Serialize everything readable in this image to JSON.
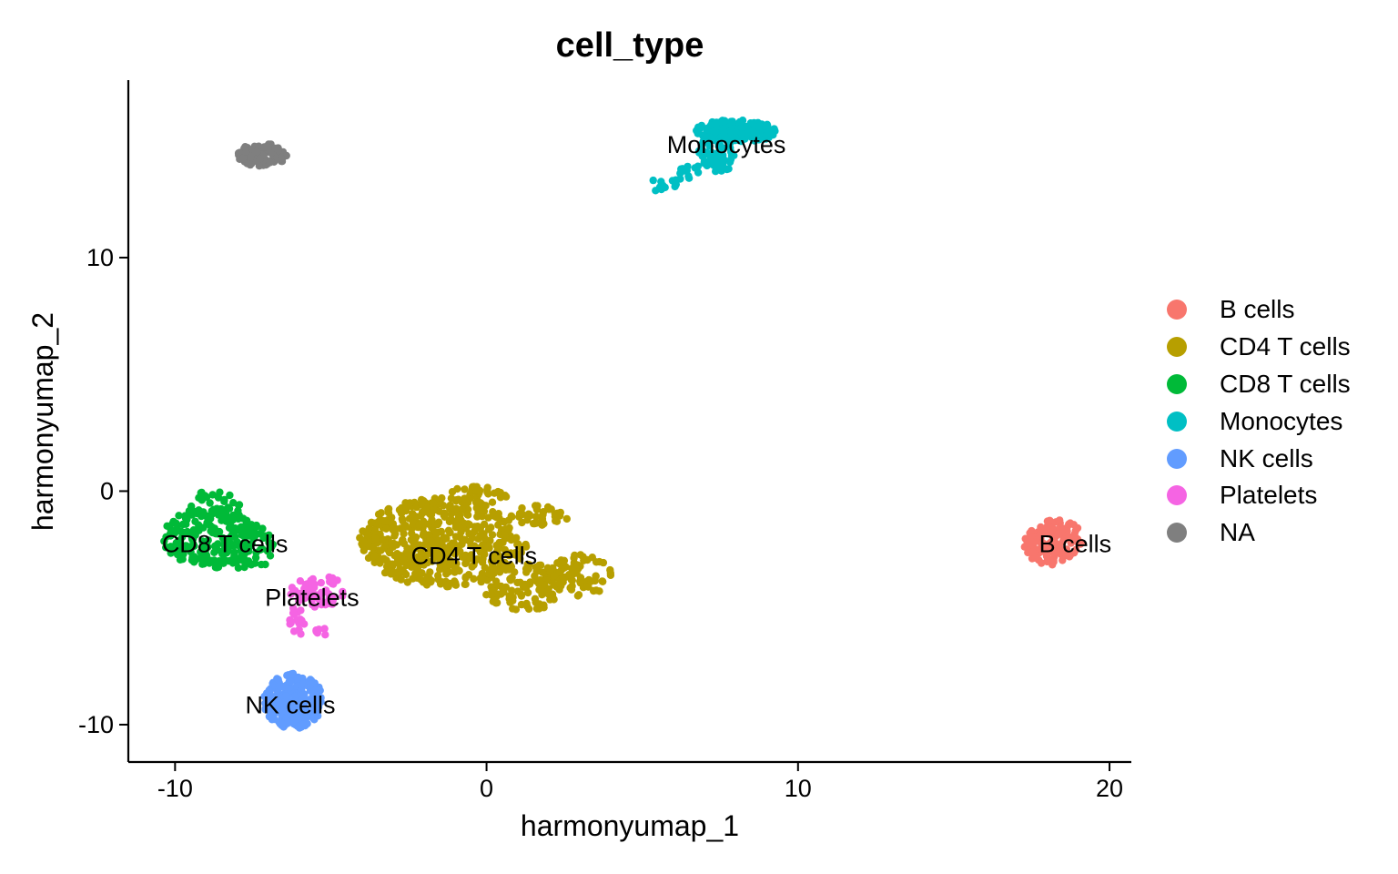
{
  "chart_data": {
    "type": "scatter",
    "title": "cell_type",
    "xlabel": "harmonyumap_1",
    "ylabel": "harmonyumap_2",
    "xlim": [
      -11.5,
      20.7
    ],
    "ylim": [
      -11.6,
      17.6
    ],
    "xticks": [
      -10,
      0,
      10,
      20
    ],
    "xtick_labels": [
      "-10",
      "0",
      "10",
      "20"
    ],
    "yticks": [
      -10,
      0,
      10
    ],
    "ytick_labels": [
      "-10",
      "0",
      "10"
    ],
    "grid": false,
    "legend_position": "right",
    "series": [
      {
        "name": "B cells",
        "color": "#F8766D",
        "label": "B cells",
        "label_pos": [
          18.9,
          -2.3
        ],
        "regions": [
          {
            "cx": 18.2,
            "cy": -2.2,
            "rx": 0.9,
            "ry": 1.05,
            "n": 140,
            "tilt": -0.7
          }
        ],
        "centroid": [
          18.2,
          -2.2
        ]
      },
      {
        "name": "CD4 T cells",
        "color": "#B79F00",
        "label": "CD4 T cells",
        "label_pos": [
          -0.4,
          -2.8
        ],
        "regions": [
          {
            "cx": -1.4,
            "cy": -2.2,
            "rx": 2.7,
            "ry": 1.9,
            "n": 520
          },
          {
            "cx": 1.3,
            "cy": -4.1,
            "rx": 1.4,
            "ry": 1.0,
            "n": 110
          },
          {
            "cx": 3.0,
            "cy": -3.6,
            "rx": 1.0,
            "ry": 0.9,
            "n": 70
          },
          {
            "cx": 1.6,
            "cy": -1.1,
            "rx": 1.0,
            "ry": 0.5,
            "n": 40
          },
          {
            "cx": -0.4,
            "cy": -0.3,
            "rx": 1.1,
            "ry": 0.5,
            "n": 40
          }
        ],
        "centroid": [
          -0.5,
          -2.5
        ]
      },
      {
        "name": "CD8 T cells",
        "color": "#00BA38",
        "label": "CD8 T cells",
        "label_pos": [
          -8.4,
          -2.3
        ],
        "regions": [
          {
            "cx": -8.9,
            "cy": -2.0,
            "rx": 1.5,
            "ry": 1.3,
            "n": 200
          },
          {
            "cx": -7.6,
            "cy": -2.4,
            "rx": 0.8,
            "ry": 1.0,
            "n": 60
          },
          {
            "cx": -8.8,
            "cy": -0.6,
            "rx": 0.9,
            "ry": 0.6,
            "n": 40
          }
        ],
        "centroid": [
          -8.6,
          -2.0
        ]
      },
      {
        "name": "Monocytes",
        "color": "#00BFC4",
        "label": "Monocytes",
        "label_pos": [
          7.7,
          14.8
        ],
        "regions": [
          {
            "cx": 8.0,
            "cy": 15.4,
            "rx": 1.3,
            "ry": 0.5,
            "n": 150
          },
          {
            "cx": 7.4,
            "cy": 14.5,
            "rx": 0.6,
            "ry": 0.9,
            "n": 70
          },
          {
            "cx": 6.0,
            "cy": 13.4,
            "rx": 1.0,
            "ry": 0.35,
            "n": 25,
            "tilt": 0.5
          }
        ],
        "centroid": [
          7.7,
          14.8
        ]
      },
      {
        "name": "NK cells",
        "color": "#619CFF",
        "label": "NK cells",
        "label_pos": [
          -6.3,
          -9.2
        ],
        "regions": [
          {
            "cx": -6.2,
            "cy": -9.0,
            "rx": 0.95,
            "ry": 1.2,
            "n": 260
          }
        ],
        "centroid": [
          -6.2,
          -9.0
        ]
      },
      {
        "name": "Platelets",
        "color": "#F564E3",
        "label": "Platelets",
        "label_pos": [
          -5.6,
          -4.6
        ],
        "regions": [
          {
            "cx": -5.4,
            "cy": -4.3,
            "rx": 0.9,
            "ry": 0.7,
            "n": 50
          },
          {
            "cx": -6.1,
            "cy": -5.7,
            "rx": 0.25,
            "ry": 0.8,
            "n": 18
          },
          {
            "cx": -5.3,
            "cy": -6.1,
            "rx": 0.2,
            "ry": 0.3,
            "n": 6
          }
        ],
        "centroid": [
          -5.5,
          -4.5
        ]
      },
      {
        "name": "NA",
        "color": "#7F7F7F",
        "label": "",
        "label_pos": null,
        "regions": [
          {
            "cx": -7.2,
            "cy": 14.4,
            "rx": 0.8,
            "ry": 0.5,
            "n": 90
          }
        ],
        "centroid": [
          -7.2,
          14.4
        ]
      }
    ]
  },
  "legend": [
    {
      "label": "B cells",
      "color": "#F8766D"
    },
    {
      "label": "CD4 T cells",
      "color": "#B79F00"
    },
    {
      "label": "CD8 T cells",
      "color": "#00BA38"
    },
    {
      "label": "Monocytes",
      "color": "#00BFC4"
    },
    {
      "label": "NK cells",
      "color": "#619CFF"
    },
    {
      "label": "Platelets",
      "color": "#F564E3"
    },
    {
      "label": "NA",
      "color": "#7F7F7F"
    }
  ]
}
